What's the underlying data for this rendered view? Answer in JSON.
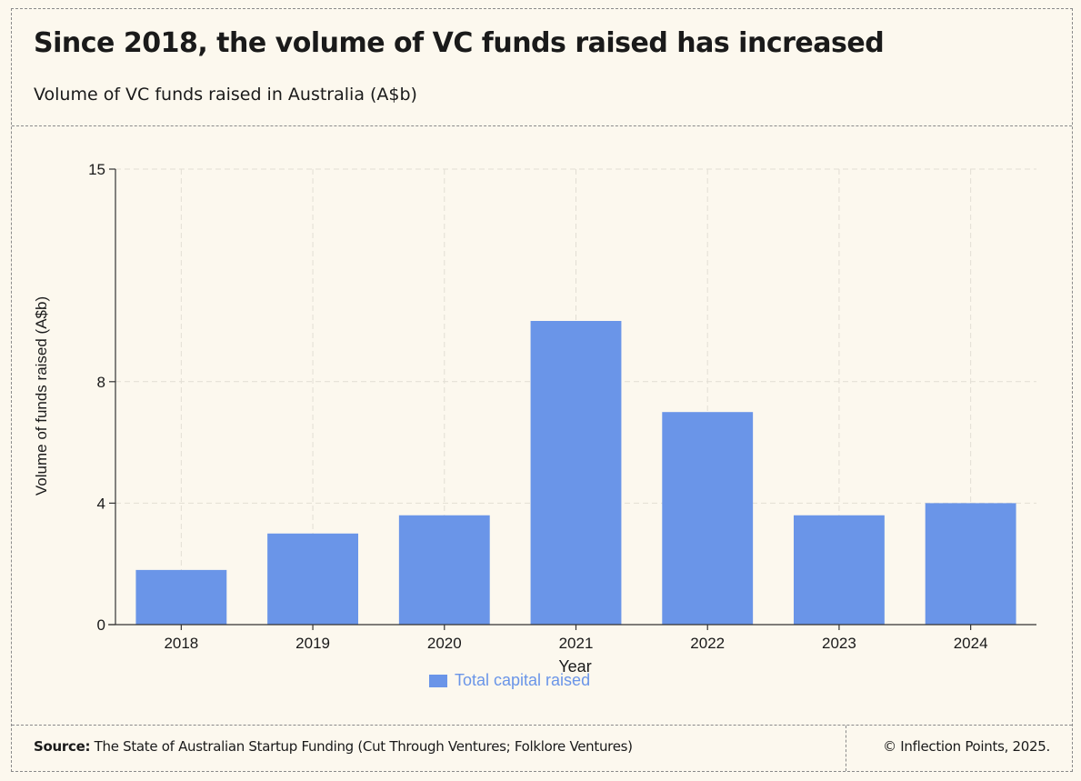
{
  "header": {
    "title": "Since 2018, the volume of VC funds raised has increased",
    "subtitle": "Volume of VC funds raised in Australia (A$b)"
  },
  "chart_data": {
    "type": "bar",
    "categories": [
      "2018",
      "2019",
      "2020",
      "2021",
      "2022",
      "2023",
      "2024"
    ],
    "series": [
      {
        "name": "Total capital raised",
        "values": [
          1.8,
          3.0,
          3.6,
          10.0,
          7.0,
          3.6,
          4.0
        ],
        "color": "#6a95e8"
      }
    ],
    "xlabel": "Year",
    "ylabel": "Volume of funds raised (A$b)",
    "yticks": [
      0,
      4,
      8,
      15
    ],
    "ylim": [
      0,
      15
    ],
    "grid": true,
    "legend": "bottom-center"
  },
  "footer": {
    "source_label": "Source:",
    "source_text": "The State of Australian Startup Funding (Cut Through Ventures; Folklore Ventures)",
    "copyright": "© Inflection Points, 2025."
  }
}
